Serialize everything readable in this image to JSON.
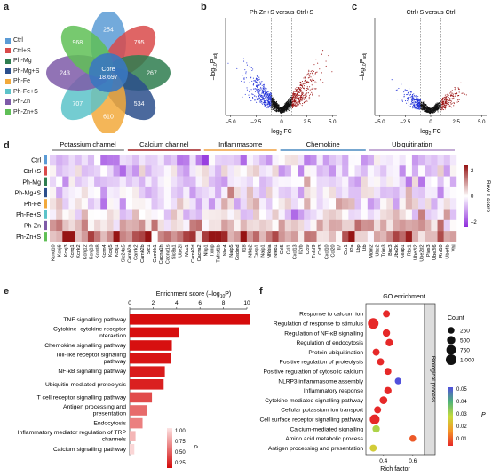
{
  "panels": {
    "a": {
      "label": "a",
      "legend": [
        {
          "name": "Ctrl",
          "color": "#5b9bd5"
        },
        {
          "name": "Ctrl+S",
          "color": "#d94a4a"
        },
        {
          "name": "Ph-Mg",
          "color": "#2e7d4f"
        },
        {
          "name": "Ph-Mg+S",
          "color": "#2b4f8c"
        },
        {
          "name": "Ph-Fe",
          "color": "#f2a93b"
        },
        {
          "name": "Ph-Fe+S",
          "color": "#5cc3c9"
        },
        {
          "name": "Ph-Zn",
          "color": "#7e5aa8"
        },
        {
          "name": "Ph-Zn+S",
          "color": "#5fbf56"
        }
      ],
      "core_label": "Core",
      "core_value": "18,697",
      "petal_values": [
        "254",
        "795",
        "267",
        "534",
        "610",
        "707",
        "243",
        "968"
      ]
    },
    "b": {
      "label": "b",
      "title": "Ph-Zn+S versus Ctrl+S",
      "ylabel_main": "–log",
      "ylabel_sub": "10",
      "ylabel_end": "P",
      "ylabel_adj": "adj",
      "xlabel_main": "log",
      "xlabel_sub": "2",
      "xlabel_end": " FC",
      "xticks": [
        "–5.0",
        "–2.5",
        "0",
        "2.5",
        "5.0"
      ]
    },
    "c": {
      "label": "c",
      "title": "Ctrl+S versus Ctrl",
      "ylabel_main": "–log",
      "ylabel_sub": "10",
      "ylabel_end": "P",
      "ylabel_adj": "adj",
      "xlabel_main": "log",
      "xlabel_sub": "2",
      "xlabel_end": " FC",
      "xticks": [
        "–5.0",
        "–2.5",
        "0",
        "2.5",
        "5.0"
      ]
    },
    "d": {
      "label": "d",
      "groups": [
        {
          "name": "Potassium channel",
          "color": "#8a8a8a"
        },
        {
          "name": "Calcium channel",
          "color": "#a02020"
        },
        {
          "name": "Inflammasome",
          "color": "#f0a040"
        },
        {
          "name": "Chemokine",
          "color": "#4a8ac0"
        },
        {
          "name": "Ubiquitination",
          "color": "#b090c8"
        }
      ],
      "rows": [
        "Ctrl",
        "Ctrl+S",
        "Ph-Mg",
        "Ph-Mg+S",
        "Ph-Fe",
        "Ph-Fe+S",
        "Ph-Zn",
        "Ph-Zn+S"
      ],
      "genes": [
        "Kcnd10",
        "Kcnj6",
        "Kcnj3",
        "Kcnq1",
        "Kcnk2",
        "Kcnj12",
        "Kcnj13",
        "Kcnd8",
        "Kcnn4",
        "Kcnj5",
        "Kcnj1",
        "Slc24a5",
        "Camk2a",
        "Camk2",
        "Camk2b",
        "Stc1",
        "Camkk1",
        "Cacna1h",
        "Cacna1s",
        "Slc8a1",
        "Ube2l",
        "Mcu1",
        "Camk2d",
        "Cacna2",
        "Nlrp1",
        "Txnip",
        "Tnfrsf1b",
        "Nlrc4",
        "Naip5",
        "Gsdmd",
        "Il18",
        "Nfkb2",
        "Casp1",
        "Naip1",
        "Nfkbia",
        "Nfkb1",
        "Ccl5",
        "Ccl1",
        "Cxcl13",
        "Il2rb",
        "Ccl9",
        "Tnfsf9",
        "Csf3",
        "Cxcl10",
        "Ccl20",
        "Il7",
        "Ccr1",
        "Il2a",
        "Lbp",
        "Ltb",
        "Mdm2",
        "Ube2",
        "Trim3",
        "Birc3",
        "Ube2k",
        "Keap1",
        "Rbx1",
        "Ube2l2",
        "Ube2d2",
        "Pias3",
        "Ube2l6",
        "Rnf10",
        "Ube4b",
        "Vhl"
      ],
      "colorbar_title": "Row z-score",
      "colorbar_ticks": [
        "2",
        "0",
        "–2"
      ]
    },
    "e": {
      "label": "e",
      "axis_title_main": "Enrichment score (–log",
      "axis_title_sub": "10",
      "axis_title_end": "P)",
      "legend_title": "P",
      "legend_ticks": [
        "1.00",
        "0.75",
        "0.50",
        "0.25"
      ]
    },
    "f": {
      "label": "f",
      "title": "GO enrichment",
      "side_label": "Biological process",
      "xlabel": "Rich factor",
      "xticks": [
        "0.4",
        "0.6"
      ],
      "count_legend_title": "Count",
      "count_legend": [
        "250",
        "500",
        "750",
        "1,000"
      ],
      "p_legend_title": "P",
      "p_legend_ticks": [
        "0.05",
        "0.04",
        "0.03",
        "0.02",
        "0.01"
      ]
    }
  },
  "chart_data": [
    {
      "type": "bar",
      "orientation": "horizontal",
      "categories": [
        "TNF signalling pathway",
        "Cytokine–cytokine receptor interaction",
        "Chemokine signalling pathway",
        "Toll-like receptor signalling pathway",
        "NF-κB signalling pathway",
        "Ubiquitin-mediated proteolysis",
        "T cell receptor signalling pathway",
        "Antigen processing and presentation",
        "Endocytosis",
        "Inflammatory mediator regulation of TRP channels",
        "Calcium signalling pathway"
      ],
      "values": [
        10.3,
        4.2,
        3.6,
        3.5,
        3.0,
        2.9,
        1.9,
        1.5,
        1.1,
        0.5,
        0.4
      ],
      "p_values": [
        0.01,
        0.02,
        0.03,
        0.05,
        0.08,
        0.1,
        0.3,
        0.45,
        0.55,
        0.8,
        0.95
      ],
      "xlim": [
        0,
        10
      ],
      "xticks": [
        0,
        2,
        4,
        6,
        8,
        10
      ]
    },
    {
      "type": "scatter",
      "categories": [
        "Response to calcium ion",
        "Regulation of response to stimulus",
        "Regulation of NF-κB signalling",
        "Regulation of endocytosis",
        "Protein ubiquitination",
        "Positive regulation of proteolysis",
        "Positive regulation of cytosolic calcium",
        "NLRP3 inflammasome assembly",
        "Inflammatory response",
        "Cytokine-mediated signalling pathway",
        "Cellular potassium ion transport",
        "Cell surface receptor signalling pathway",
        "Calcium-mediated signalling",
        "Amino acid metabolic process",
        "Antigen processing and presentation"
      ],
      "rich_factor": [
        0.42,
        0.33,
        0.42,
        0.44,
        0.35,
        0.38,
        0.43,
        0.5,
        0.43,
        0.4,
        0.36,
        0.34,
        0.35,
        0.6,
        0.33
      ],
      "count": [
        300,
        1000,
        350,
        350,
        300,
        300,
        300,
        250,
        350,
        400,
        300,
        800,
        350,
        250,
        300
      ],
      "p": [
        0.01,
        0.01,
        0.01,
        0.01,
        0.01,
        0.01,
        0.01,
        0.055,
        0.01,
        0.01,
        0.01,
        0.01,
        0.035,
        0.015,
        0.03
      ],
      "xlim": [
        0.28,
        0.68
      ]
    }
  ]
}
